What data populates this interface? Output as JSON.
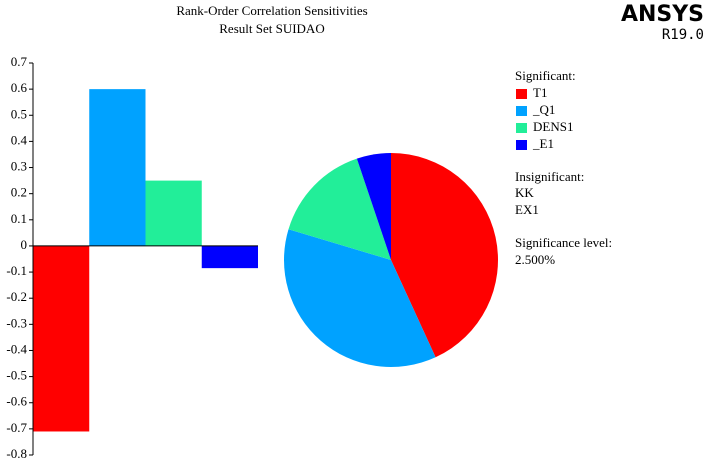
{
  "header": {
    "title": "Rank-Order Correlation Sensitivities",
    "subtitle": "Result Set SUIDAO",
    "brand": "ANSYS",
    "version": "R19.0"
  },
  "chart_data": [
    {
      "type": "bar",
      "categories": [
        "T1",
        "_Q1",
        "DENS1",
        "_E1"
      ],
      "values": [
        -0.71,
        0.6,
        0.25,
        -0.085
      ],
      "colors": [
        "#ff0000",
        "#00a2ff",
        "#22ee99",
        "#0000ff"
      ],
      "ylim": [
        -0.8,
        0.7
      ],
      "yticks": [
        0.7,
        0.6,
        0.5,
        0.4,
        0.3,
        0.2,
        0.1,
        0,
        -0.1,
        -0.2,
        -0.3,
        -0.4,
        -0.5,
        -0.6,
        -0.7,
        -0.8
      ]
    },
    {
      "type": "pie",
      "categories": [
        "T1",
        "_Q1",
        "DENS1",
        "_E1"
      ],
      "values": [
        0.71,
        0.6,
        0.25,
        0.085
      ],
      "colors": [
        "#ff0000",
        "#00a2ff",
        "#22ee99",
        "#0000ff"
      ]
    }
  ],
  "legend": {
    "significant_title": "Significant:",
    "insignificant_title": "Insignificant:",
    "insignificant": [
      "KK",
      "EX1"
    ],
    "significance_title": "Significance level:",
    "significance_level": "2.500%"
  }
}
